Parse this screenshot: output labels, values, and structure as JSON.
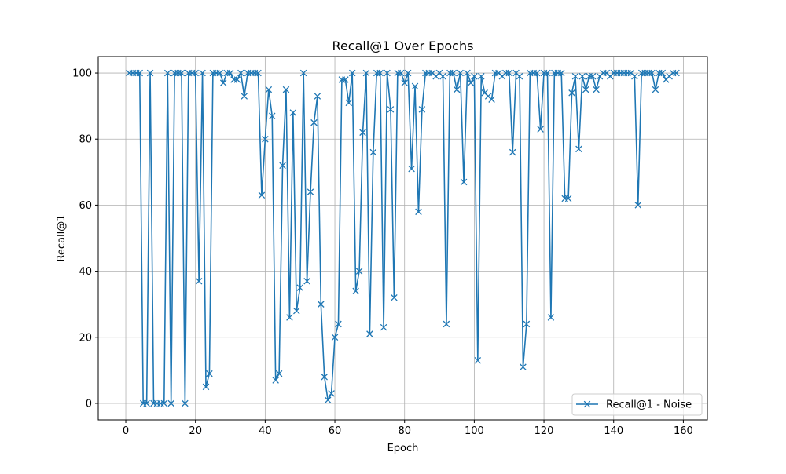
{
  "chart_data": {
    "type": "line",
    "title": "Recall@1 Over Epochs",
    "xlabel": "Epoch",
    "ylabel": "Recall@1",
    "xlim": [
      -7.9,
      166.9
    ],
    "ylim": [
      -5,
      105
    ],
    "xticks": [
      0,
      20,
      40,
      60,
      80,
      100,
      120,
      140,
      160
    ],
    "yticks": [
      0,
      20,
      40,
      60,
      80,
      100
    ],
    "grid": true,
    "legend_position": "lower-right",
    "series": [
      {
        "name": "Recall@1 - Noise",
        "color": "#1f77b4",
        "marker": "x",
        "x": [
          1,
          2,
          3,
          4,
          5,
          6,
          7,
          8,
          9,
          10,
          11,
          12,
          13,
          14,
          15,
          16,
          17,
          18,
          19,
          20,
          21,
          22,
          23,
          24,
          25,
          26,
          27,
          28,
          29,
          30,
          31,
          32,
          33,
          34,
          35,
          36,
          37,
          38,
          39,
          40,
          41,
          42,
          43,
          44,
          45,
          46,
          47,
          48,
          49,
          50,
          51,
          52,
          53,
          54,
          55,
          56,
          57,
          58,
          59,
          60,
          61,
          62,
          63,
          64,
          65,
          66,
          67,
          68,
          69,
          70,
          71,
          72,
          73,
          74,
          75,
          76,
          77,
          78,
          79,
          80,
          81,
          82,
          83,
          84,
          85,
          86,
          87,
          88,
          89,
          90,
          91,
          92,
          93,
          94,
          95,
          96,
          97,
          98,
          99,
          100,
          101,
          102,
          103,
          104,
          105,
          106,
          107,
          108,
          109,
          110,
          111,
          112,
          113,
          114,
          115,
          116,
          117,
          118,
          119,
          120,
          121,
          122,
          123,
          124,
          125,
          126,
          127,
          128,
          129,
          130,
          131,
          132,
          133,
          134,
          135,
          136,
          137,
          138,
          139,
          140,
          141,
          142,
          143,
          144,
          145,
          146,
          147,
          148,
          149,
          150,
          151,
          152,
          153,
          154,
          155,
          156,
          157,
          158
        ],
        "y": [
          100,
          100,
          100,
          100,
          0,
          0,
          100,
          0,
          0,
          0,
          0,
          100,
          0,
          100,
          100,
          100,
          0,
          100,
          100,
          100,
          37,
          100,
          5,
          9,
          100,
          100,
          100,
          97,
          100,
          100,
          98,
          98,
          100,
          93,
          100,
          100,
          100,
          100,
          63,
          80,
          95,
          87,
          7,
          9,
          72,
          95,
          26,
          88,
          28,
          35,
          100,
          37,
          64,
          85,
          93,
          30,
          8,
          1,
          3,
          20,
          24,
          98,
          98,
          91,
          100,
          34,
          40,
          82,
          100,
          21,
          76,
          100,
          100,
          23,
          100,
          89,
          32,
          100,
          100,
          97,
          100,
          71,
          96,
          58,
          89,
          100,
          100,
          100,
          99,
          100,
          99,
          24,
          100,
          100,
          95,
          100,
          67,
          100,
          97,
          99,
          13,
          99,
          94,
          93,
          92,
          100,
          100,
          99,
          100,
          100,
          76,
          100,
          99,
          11,
          24,
          100,
          100,
          100,
          83,
          100,
          100,
          26,
          100,
          100,
          100,
          62,
          62,
          94,
          99,
          77,
          99,
          95,
          99,
          99,
          95,
          99,
          100,
          100,
          99,
          100,
          100,
          100,
          100,
          100,
          100,
          99,
          60,
          100,
          100,
          100,
          100,
          95,
          100,
          100,
          98,
          99,
          100,
          100
        ]
      }
    ]
  }
}
